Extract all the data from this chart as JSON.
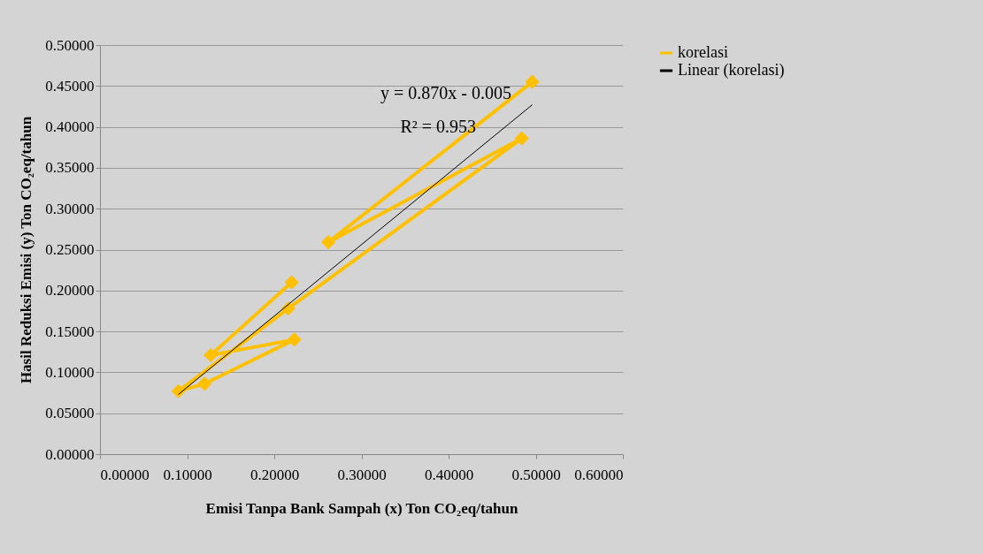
{
  "chart_data": {
    "type": "line",
    "xlabel": "Emisi Tanpa Bank Sampah (x) Ton CO₂eq/tahun",
    "ylabel": "Hasil Reduksi Emisi (y) Ton CO₂eq/tahun",
    "series": [
      {
        "name": "korelasi",
        "color": "#ffc000",
        "x": [
          0.496,
          0.262,
          0.484,
          0.216,
          0.09,
          0.12,
          0.223,
          0.127,
          0.22
        ],
        "values": [
          0.455,
          0.259,
          0.386,
          0.178,
          0.077,
          0.086,
          0.14,
          0.121,
          0.21
        ],
        "marker": "diamond"
      },
      {
        "name": "Linear (korelasi)",
        "color": "#000000",
        "x": [
          0.09,
          0.496
        ],
        "values": [
          0.073,
          0.427
        ],
        "marker": "none"
      }
    ],
    "annotations": [
      "y = 0.870x - 0.005",
      "R² = 0.953"
    ],
    "xlim": [
      0,
      0.6
    ],
    "ylim": [
      0,
      0.5
    ],
    "xticks": [
      {
        "value": 0,
        "label": "0.00000"
      },
      {
        "value": 0.1,
        "label": "0.10000"
      },
      {
        "value": 0.2,
        "label": "0.20000"
      },
      {
        "value": 0.3,
        "label": "0.30000"
      },
      {
        "value": 0.4,
        "label": "0.40000"
      },
      {
        "value": 0.5,
        "label": "0.50000"
      },
      {
        "value": 0.6,
        "label": "0.60000"
      }
    ],
    "yticks": [
      {
        "value": 0,
        "label": "0.00000"
      },
      {
        "value": 0.05,
        "label": "0.05000"
      },
      {
        "value": 0.1,
        "label": "0.10000"
      },
      {
        "value": 0.15,
        "label": "0.15000"
      },
      {
        "value": 0.2,
        "label": "0.20000"
      },
      {
        "value": 0.25,
        "label": "0.25000"
      },
      {
        "value": 0.3,
        "label": "0.30000"
      },
      {
        "value": 0.35,
        "label": "0.35000"
      },
      {
        "value": 0.4,
        "label": "0.40000"
      },
      {
        "value": 0.45,
        "label": "0.45000"
      },
      {
        "value": 0.5,
        "label": "0.50000"
      }
    ],
    "grid": "y",
    "legend": "right"
  }
}
